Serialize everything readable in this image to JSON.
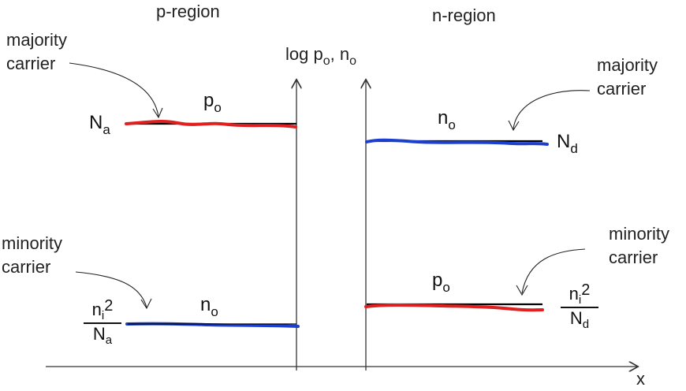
{
  "regions": {
    "p_region": "p-region",
    "n_region": "n-region"
  },
  "y_axis_label": "log p",
  "y_axis_label_sub": "o",
  "y_axis_label_tail": ", n",
  "y_axis_label_tail_sub": "o",
  "x_axis_label": "x",
  "annotations": {
    "majority_left": [
      "majority",
      "carrier"
    ],
    "majority_right": [
      "majority",
      "carrier"
    ],
    "minority_left": [
      "minority",
      "carrier"
    ],
    "minority_right": [
      "minority",
      "carrier"
    ]
  },
  "symbols": {
    "Na": {
      "base": "N",
      "sub": "a"
    },
    "Nd": {
      "base": "N",
      "sub": "d"
    },
    "p_region_majority": {
      "base": "p",
      "sub": "o"
    },
    "n_region_majority": {
      "base": "n",
      "sub": "o"
    },
    "p_region_minority": {
      "base": "n",
      "sub": "o"
    },
    "n_region_minority": {
      "base": "p",
      "sub": "o"
    },
    "ni2_over_Na": {
      "num_base": "n",
      "num_sub": "i",
      "num_sup": "2",
      "den_base": "N",
      "den_sub": "a"
    },
    "ni2_over_Nd": {
      "num_base": "n",
      "num_sub": "i",
      "num_sup": "2",
      "den_base": "N",
      "den_sub": "d"
    }
  },
  "colors": {
    "majority_p": "#e02020",
    "majority_n": "#1c3fd0",
    "axis": "#333333",
    "reference": "#000000"
  }
}
